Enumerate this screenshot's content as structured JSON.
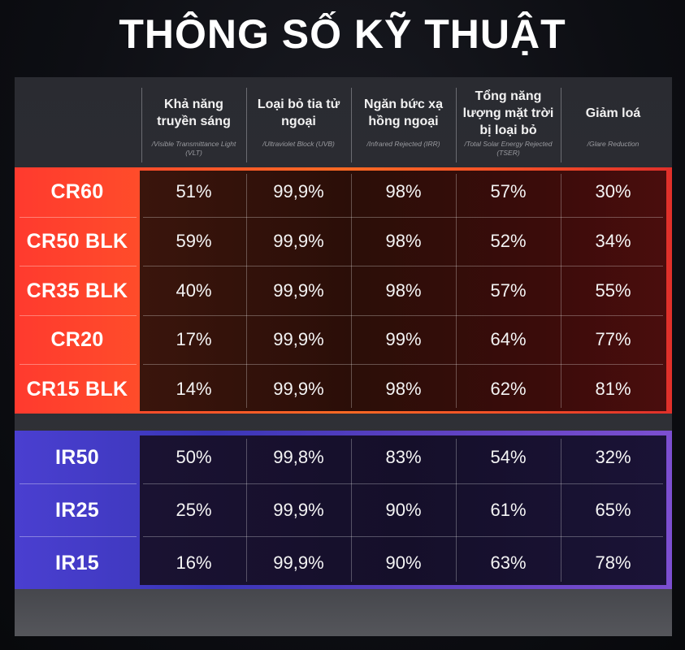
{
  "title": "THÔNG SỐ KỸ THUẬT",
  "columns": [
    {
      "label": "Khả năng truyền sáng",
      "sub": "/Visible Transmittance Light (VLT)"
    },
    {
      "label": "Loại bỏ tia tử ngoại",
      "sub": "/Ultraviolet Block (UVB)"
    },
    {
      "label": "Ngăn bức xạ hồng ngoại",
      "sub": "/Infrared Rejected (IRR)"
    },
    {
      "label": "Tổng năng lượng mặt trời bị loại bỏ",
      "sub": "/Total Solar Energy Rejected (TSER)"
    },
    {
      "label": "Giảm loá",
      "sub": "/Glare Reduction"
    }
  ],
  "cr_rows": [
    {
      "name": "CR60",
      "values": [
        "51%",
        "99,9%",
        "98%",
        "57%",
        "30%"
      ]
    },
    {
      "name": "CR50 BLK",
      "values": [
        "59%",
        "99,9%",
        "98%",
        "52%",
        "34%"
      ]
    },
    {
      "name": "CR35 BLK",
      "values": [
        "40%",
        "99,9%",
        "98%",
        "57%",
        "55%"
      ]
    },
    {
      "name": "CR20",
      "values": [
        "17%",
        "99,9%",
        "99%",
        "64%",
        "77%"
      ]
    },
    {
      "name": "CR15 BLK",
      "values": [
        "14%",
        "99,9%",
        "98%",
        "62%",
        "81%"
      ]
    }
  ],
  "ir_rows": [
    {
      "name": "IR50",
      "values": [
        "50%",
        "99,8%",
        "83%",
        "54%",
        "32%"
      ]
    },
    {
      "name": "IR25",
      "values": [
        "25%",
        "99,9%",
        "90%",
        "61%",
        "65%"
      ]
    },
    {
      "name": "IR15",
      "values": [
        "16%",
        "99,9%",
        "90%",
        "63%",
        "78%"
      ]
    }
  ],
  "colors": {
    "cr_accent": "#ff4d2a",
    "ir_accent": "#4a3fd0"
  }
}
